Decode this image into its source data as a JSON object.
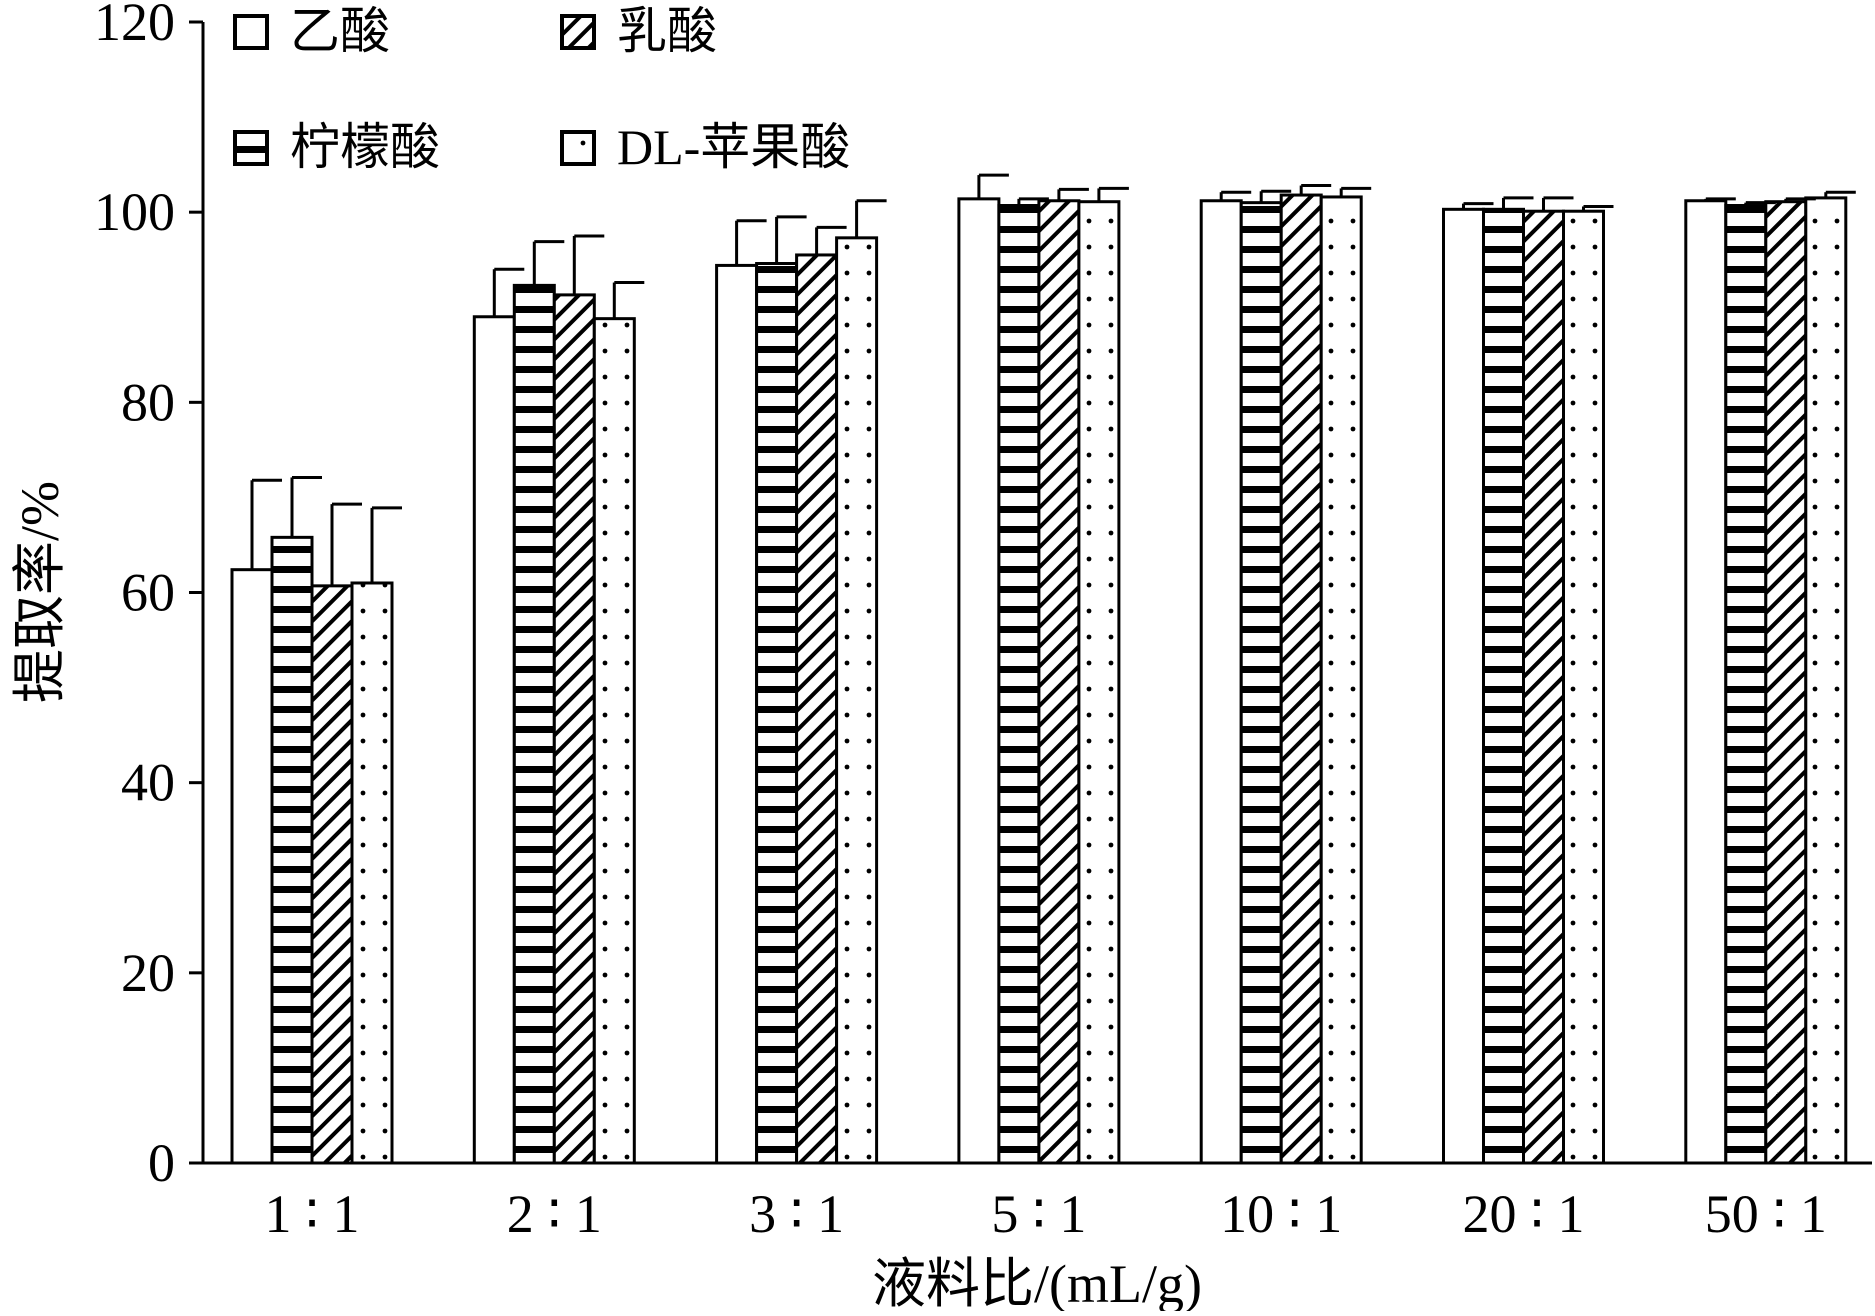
{
  "chart_data": {
    "type": "bar",
    "title": "",
    "xlabel": "液料比/(mL/g)",
    "ylabel": "提取率/%",
    "ylim": [
      0,
      120
    ],
    "yticks": [
      0,
      20,
      40,
      60,
      80,
      100,
      120
    ],
    "grid": false,
    "legend_position": "top-left",
    "categories": [
      "1 ∶ 1",
      "2 ∶ 1",
      "3 ∶ 1",
      "5 ∶ 1",
      "10 ∶ 1",
      "20 ∶ 1",
      "50 ∶ 1"
    ],
    "series": [
      {
        "name": "乙酸",
        "pattern": "plain",
        "values": [
          62.4,
          89.0,
          94.4,
          101.4,
          101.2,
          100.3,
          101.2
        ],
        "errors": [
          9.4,
          5.0,
          4.7,
          2.5,
          0.9,
          0.6,
          0.2
        ]
      },
      {
        "name": "柠檬酸",
        "pattern": "horizontal-lines",
        "values": [
          65.8,
          92.3,
          94.6,
          100.7,
          101.0,
          100.3,
          100.7
        ],
        "errors": [
          6.3,
          4.6,
          4.9,
          0.7,
          1.2,
          1.2,
          0.3
        ]
      },
      {
        "name": "乳酸",
        "pattern": "diagonal-lines",
        "values": [
          60.7,
          91.3,
          95.5,
          101.2,
          101.8,
          100.1,
          101.1
        ],
        "errors": [
          8.6,
          6.2,
          2.9,
          1.2,
          1.0,
          1.4,
          0.3
        ]
      },
      {
        "name": "DL-苹果酸",
        "pattern": "dots",
        "values": [
          61.0,
          88.8,
          97.3,
          101.1,
          101.6,
          100.1,
          101.5
        ],
        "errors": [
          7.9,
          3.8,
          3.9,
          1.4,
          0.9,
          0.5,
          0.6
        ]
      }
    ]
  }
}
